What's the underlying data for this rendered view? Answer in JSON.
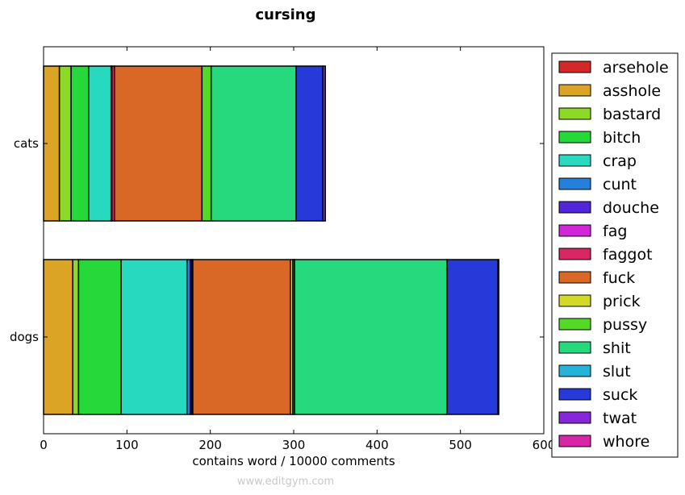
{
  "watermark": "www.editgym.com",
  "chart_data": {
    "type": "bar",
    "orientation": "horizontal",
    "stacked": true,
    "title": "cursing",
    "xlabel": "contains word / 10000 comments",
    "ylabel": "",
    "xlim": [
      0,
      600
    ],
    "x_ticks": [
      "0",
      "100",
      "200",
      "300",
      "400",
      "500",
      "600"
    ],
    "categories": [
      "cats",
      "dogs"
    ],
    "grid": false,
    "legend_position": "right",
    "series": [
      {
        "name": "arsehole",
        "color": "#d62728",
        "values": [
          0,
          0
        ]
      },
      {
        "name": "asshole",
        "color": "#dba424",
        "values": [
          19,
          35
        ]
      },
      {
        "name": "bastard",
        "color": "#8cd926",
        "values": [
          14,
          7
        ]
      },
      {
        "name": "bitch",
        "color": "#26d93a",
        "values": [
          21,
          51
        ]
      },
      {
        "name": "crap",
        "color": "#26d9bf",
        "values": [
          27,
          79
        ]
      },
      {
        "name": "cunt",
        "color": "#2680d9",
        "values": [
          0,
          4
        ]
      },
      {
        "name": "douche",
        "color": "#5226d9",
        "values": [
          1,
          2
        ]
      },
      {
        "name": "fag",
        "color": "#d226d9",
        "values": [
          0,
          0
        ]
      },
      {
        "name": "faggot",
        "color": "#d92664",
        "values": [
          3,
          1
        ]
      },
      {
        "name": "fuck",
        "color": "#d96726",
        "values": [
          105,
          117
        ]
      },
      {
        "name": "prick",
        "color": "#d2d926",
        "values": [
          0,
          3
        ]
      },
      {
        "name": "pussy",
        "color": "#54d926",
        "values": [
          11,
          2
        ]
      },
      {
        "name": "shit",
        "color": "#26d97c",
        "values": [
          102,
          183
        ]
      },
      {
        "name": "slut",
        "color": "#26b3d9",
        "values": [
          0,
          0
        ]
      },
      {
        "name": "suck",
        "color": "#263ad9",
        "values": [
          32,
          61
        ]
      },
      {
        "name": "twat",
        "color": "#8826d9",
        "values": [
          3,
          1
        ]
      },
      {
        "name": "whore",
        "color": "#d926a8",
        "values": [
          0,
          0
        ]
      }
    ]
  }
}
